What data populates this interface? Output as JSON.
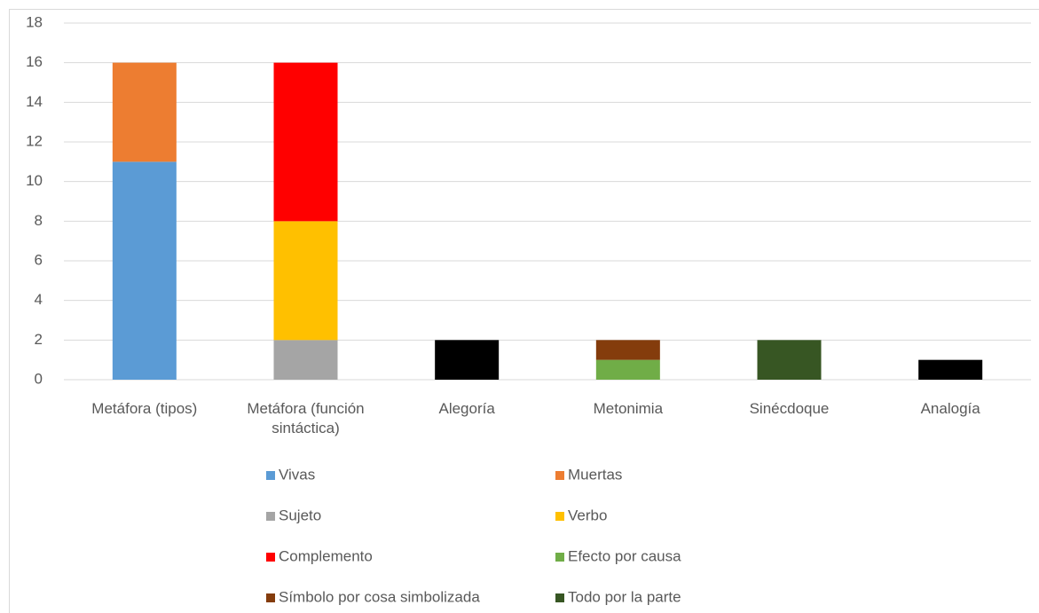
{
  "chart_data": {
    "type": "bar",
    "stacked": true,
    "categories": [
      "Metáfora (tipos)",
      "Metáfora (función sintáctica)",
      "Alegoría",
      "Metonimia",
      "Sinécdoque",
      "Analogía"
    ],
    "series": [
      {
        "name": "Vivas",
        "color": "#5b9bd5",
        "values": [
          11,
          null,
          null,
          null,
          null,
          null
        ]
      },
      {
        "name": "Muertas",
        "color": "#ed7d31",
        "values": [
          5,
          null,
          null,
          null,
          null,
          null
        ]
      },
      {
        "name": "Sujeto",
        "color": "#a5a5a5",
        "values": [
          null,
          2,
          null,
          null,
          null,
          null
        ]
      },
      {
        "name": "Verbo",
        "color": "#ffc000",
        "values": [
          null,
          6,
          null,
          null,
          null,
          null
        ]
      },
      {
        "name": "Complemento",
        "color": "#ff0000",
        "values": [
          null,
          8,
          null,
          null,
          null,
          null
        ]
      },
      {
        "name": "Efecto por causa",
        "color": "#70ad47",
        "values": [
          null,
          null,
          null,
          1,
          null,
          null
        ]
      },
      {
        "name": "Símbolo por cosa simbolizada",
        "color": "#843c0c",
        "values": [
          null,
          null,
          null,
          1,
          null,
          null
        ]
      },
      {
        "name": "Todo por la parte",
        "color": "#375623",
        "values": [
          null,
          null,
          null,
          null,
          2,
          null
        ]
      },
      {
        "color": "#000000",
        "values": [
          null,
          null,
          2,
          null,
          null,
          1
        ]
      }
    ],
    "ylim": [
      0,
      18
    ],
    "yticks": [
      0,
      2,
      4,
      6,
      8,
      10,
      12,
      14,
      16,
      18
    ],
    "grid": true,
    "legend": "bottom"
  }
}
